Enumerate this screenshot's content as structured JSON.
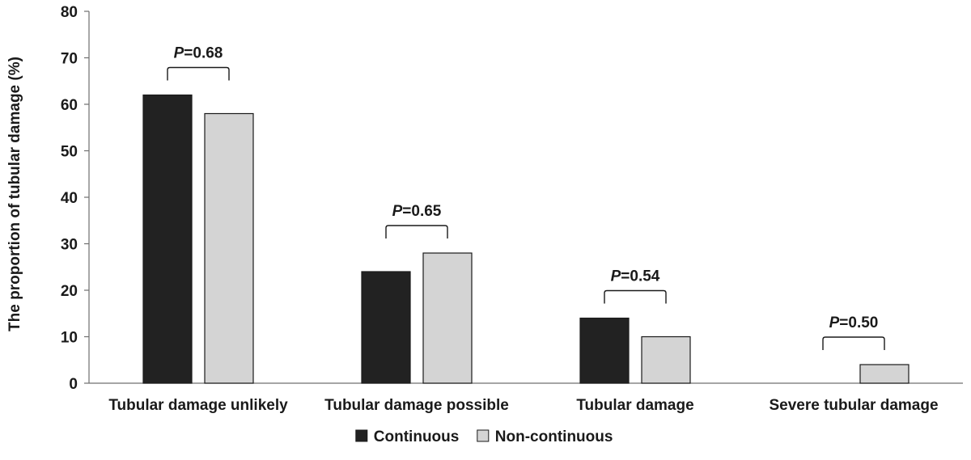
{
  "chart_data": {
    "type": "bar",
    "ylabel": "The proportion of tubular damage (%)",
    "xlabel": "",
    "ylim": [
      0,
      80
    ],
    "yticks": [
      0,
      10,
      20,
      30,
      40,
      50,
      60,
      70,
      80
    ],
    "categories": [
      "Tubular damage unlikely",
      "Tubular damage possible",
      "Tubular damage",
      "Severe tubular damage"
    ],
    "series": [
      {
        "name": "Continuous",
        "color": "#222222",
        "values": [
          62,
          24,
          14,
          0
        ]
      },
      {
        "name": "Non-continuous",
        "color": "#d4d4d4",
        "values": [
          58,
          28,
          10,
          4
        ]
      }
    ],
    "annotations": [
      {
        "category": "Tubular damage unlikely",
        "p_label": "P",
        "p_value": "=0.68"
      },
      {
        "category": "Tubular damage possible",
        "p_label": "P",
        "p_value": "=0.65"
      },
      {
        "category": "Tubular damage",
        "p_label": "P",
        "p_value": "=0.54"
      },
      {
        "category": "Severe tubular damage",
        "p_label": "P",
        "p_value": "=0.50"
      }
    ],
    "legend_position": "bottom-center",
    "grid": false
  }
}
